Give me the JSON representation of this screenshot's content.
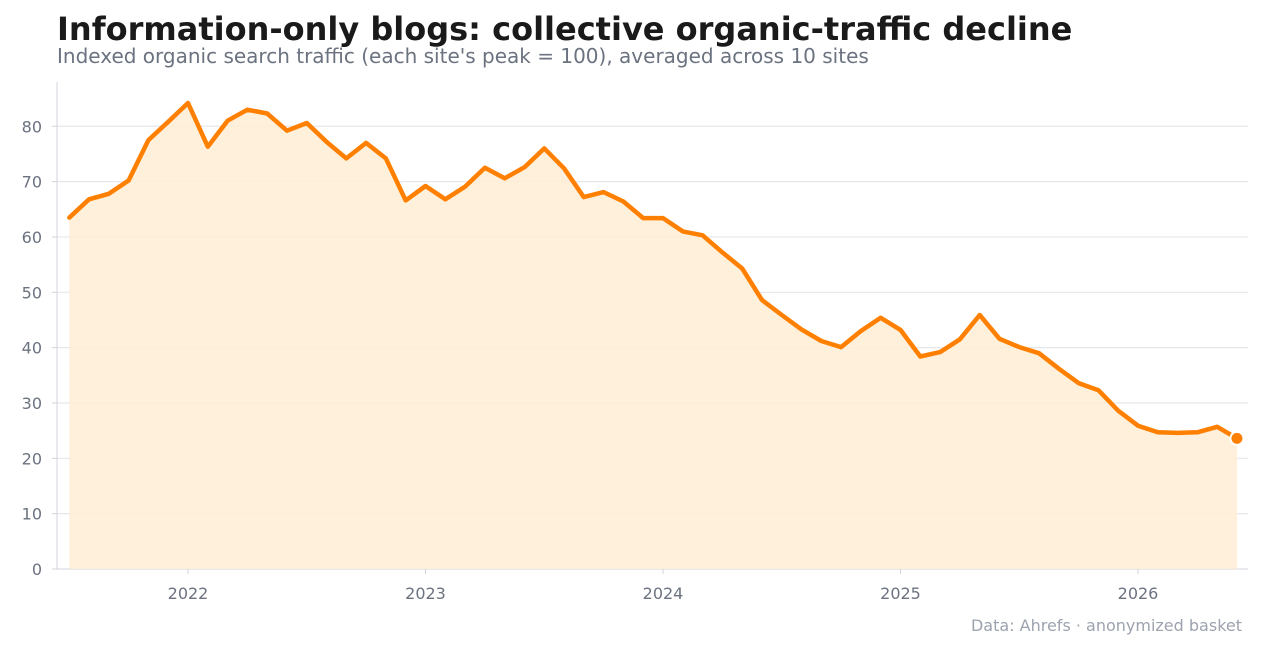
{
  "title": "Information-only blogs: collective organic-traffic decline",
  "subtitle": "Indexed organic search traffic (each site's peak = 100), averaged across 10 sites",
  "source": "Data: Ahrefs · anonymized basket",
  "colors": {
    "line": "#ff8000",
    "fill": "#ffedd5",
    "grid": "#e5e7eb",
    "axis": "#d1d5db"
  },
  "chart_data": {
    "type": "area",
    "x_unit": "month",
    "ylim": [
      0,
      88
    ],
    "yticks": [
      0,
      10,
      20,
      30,
      40,
      50,
      60,
      70,
      80
    ],
    "xticks": [
      "2022",
      "2023",
      "2024",
      "2025",
      "2026"
    ],
    "grid": "horizontal",
    "last_point_marker": true,
    "series": [
      {
        "x": [
          "2021-07",
          "2021-08",
          "2021-09",
          "2021-10",
          "2021-11",
          "2021-12",
          "2022-01",
          "2022-02",
          "2022-03",
          "2022-04",
          "2022-05",
          "2022-06",
          "2022-07",
          "2022-08",
          "2022-09",
          "2022-10",
          "2022-11",
          "2022-12",
          "2023-01",
          "2023-02",
          "2023-03",
          "2023-04",
          "2023-05",
          "2023-06",
          "2023-07",
          "2023-08",
          "2023-09",
          "2023-10",
          "2023-11",
          "2023-12",
          "2024-01",
          "2024-02",
          "2024-03",
          "2024-04",
          "2024-05",
          "2024-06",
          "2024-07",
          "2024-08",
          "2024-09",
          "2024-10",
          "2024-11",
          "2024-12",
          "2025-01",
          "2025-02",
          "2025-03",
          "2025-04",
          "2025-05",
          "2025-06",
          "2025-07",
          "2025-08",
          "2025-09",
          "2025-10",
          "2025-11",
          "2025-12",
          "2026-01",
          "2026-02",
          "2026-03",
          "2026-04",
          "2026-05",
          "2026-06"
        ],
        "values": [
          63.5,
          66.8,
          67.8,
          70.2,
          77.5,
          80.8,
          84.2,
          76.3,
          81.0,
          83.0,
          82.3,
          79.2,
          80.6,
          77.2,
          74.2,
          77.0,
          74.2,
          66.6,
          69.2,
          66.8,
          69.1,
          72.5,
          70.6,
          72.6,
          76.0,
          72.4,
          67.2,
          68.1,
          66.4,
          63.4,
          63.4,
          61.0,
          60.3,
          57.2,
          54.3,
          48.6,
          45.9,
          43.3,
          41.2,
          40.1,
          43.0,
          45.4,
          43.2,
          38.4,
          39.2,
          41.5,
          45.9,
          41.6,
          40.1,
          39.0,
          36.2,
          33.6,
          32.3,
          28.6,
          25.9,
          24.7,
          24.6,
          24.7,
          25.7,
          23.6
        ]
      }
    ]
  }
}
